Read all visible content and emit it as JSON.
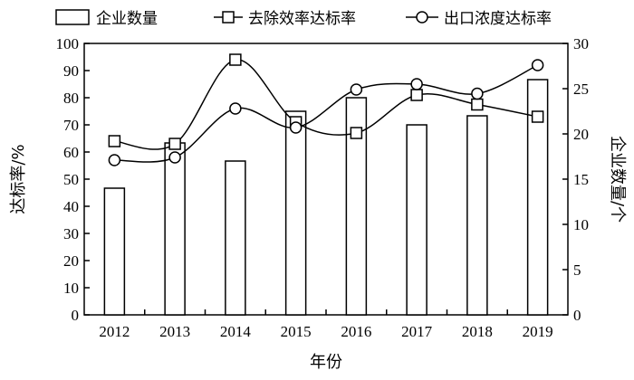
{
  "chart_data": {
    "type": "bar+line",
    "categories": [
      "2012",
      "2013",
      "2014",
      "2015",
      "2016",
      "2017",
      "2018",
      "2019"
    ],
    "bar_series": {
      "name": "企业数量",
      "axis": "right",
      "values": [
        14,
        19,
        17,
        22.5,
        24,
        21,
        22,
        26
      ]
    },
    "line_series": [
      {
        "name": "去除效率达标率",
        "axis": "left",
        "marker": "square",
        "values": [
          64,
          63,
          94,
          71,
          67,
          81,
          77.5,
          73
        ]
      },
      {
        "name": "出口浓度达标率",
        "axis": "left",
        "marker": "circle",
        "values": [
          57,
          58,
          76,
          69,
          83,
          85,
          81.5,
          92
        ]
      }
    ],
    "xlabel": "年份",
    "ylabel_left": "达标率/%",
    "ylabel_right": "企业数量/个",
    "ylim_left": [
      0,
      100
    ],
    "yticks_left": [
      "0",
      "10",
      "20",
      "30",
      "40",
      "50",
      "60",
      "70",
      "80",
      "90",
      "100"
    ],
    "ylim_right": [
      0,
      30
    ],
    "yticks_right": [
      "0",
      "5",
      "10",
      "15",
      "20",
      "25",
      "30"
    ],
    "legend_position": "top",
    "grid": false
  }
}
